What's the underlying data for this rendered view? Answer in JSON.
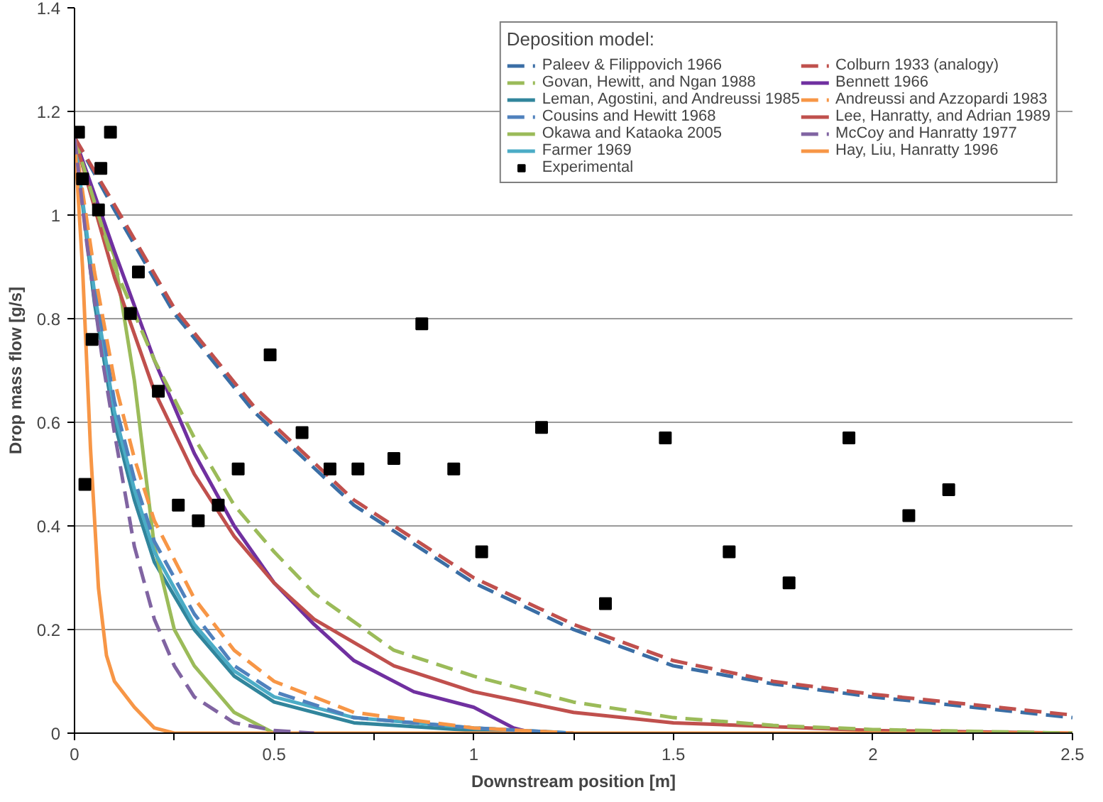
{
  "chart_data": {
    "type": "line",
    "xlabel": "Downstream position [m]",
    "ylabel": "Drop mass flow [g/s]",
    "legend_title": "Deposition model:",
    "legend": "top right",
    "grid": "y",
    "xlim": [
      0,
      2.5
    ],
    "ylim": [
      0,
      1.4
    ],
    "xticks": [
      0,
      {
        "value": 0.25,
        "label": null
      },
      0.5,
      {
        "value": 0.75,
        "label": null
      },
      1,
      {
        "value": 1.25,
        "label": null
      },
      1.5,
      {
        "value": 1.75,
        "label": null
      },
      2,
      {
        "value": 2.25,
        "label": null
      },
      2.5
    ],
    "yticks": [
      0,
      0.2,
      0.4,
      0.6,
      0.8,
      1,
      1.2,
      1.4
    ],
    "series": [
      {
        "name": "Paleev & Filippovich 1966",
        "color": "#3a6ea5",
        "line_style": "dashed",
        "x": [
          0,
          0.1,
          0.25,
          0.45,
          0.7,
          1.0,
          1.25,
          1.5,
          1.75,
          2.0,
          2.25,
          2.5
        ],
        "values": [
          1.15,
          1.01,
          0.81,
          0.62,
          0.44,
          0.29,
          0.2,
          0.13,
          0.095,
          0.07,
          0.05,
          0.03
        ]
      },
      {
        "name": "Govan, Hewitt, and Ngan 1988",
        "color": "#9bbb59",
        "line_style": "dashed",
        "x": [
          0,
          0.1,
          0.2,
          0.3,
          0.4,
          0.5,
          0.6,
          0.8,
          1.0,
          1.25,
          1.5,
          1.75,
          2.0,
          2.5
        ],
        "values": [
          1.15,
          0.9,
          0.72,
          0.57,
          0.44,
          0.35,
          0.27,
          0.16,
          0.11,
          0.06,
          0.03,
          0.015,
          0.007,
          0
        ]
      },
      {
        "name": "Leman, Agostini, and Andreussi 1985",
        "color": "#31859c",
        "line_style": "solid",
        "x": [
          0,
          0.05,
          0.1,
          0.15,
          0.2,
          0.3,
          0.4,
          0.5,
          0.7,
          1.0,
          1.25
        ],
        "values": [
          1.15,
          0.83,
          0.6,
          0.45,
          0.33,
          0.2,
          0.11,
          0.06,
          0.02,
          0.005,
          0
        ]
      },
      {
        "name": "Cousins and Hewitt 1968",
        "color": "#4f81bd",
        "line_style": "dashed",
        "x": [
          0,
          0.05,
          0.1,
          0.15,
          0.2,
          0.3,
          0.4,
          0.5,
          0.7,
          1.0,
          1.25
        ],
        "values": [
          1.15,
          0.87,
          0.64,
          0.49,
          0.37,
          0.23,
          0.13,
          0.08,
          0.03,
          0.01,
          0
        ]
      },
      {
        "name": "Okawa and Kataoka 2005",
        "color": "#9bbb59",
        "line_style": "solid",
        "x": [
          0,
          0.05,
          0.1,
          0.15,
          0.2,
          0.25,
          0.3,
          0.4,
          0.5
        ],
        "values": [
          1.15,
          1.02,
          0.92,
          0.68,
          0.36,
          0.2,
          0.13,
          0.04,
          0
        ]
      },
      {
        "name": "Farmer 1969",
        "color": "#4bacc6",
        "line_style": "solid",
        "x": [
          0,
          0.05,
          0.1,
          0.15,
          0.2,
          0.3,
          0.4,
          0.5,
          0.7,
          1.0,
          1.25
        ],
        "values": [
          1.15,
          0.85,
          0.62,
          0.47,
          0.35,
          0.21,
          0.12,
          0.07,
          0.03,
          0.01,
          0
        ]
      },
      {
        "name": "Experimental",
        "type": "scatter",
        "marker": "square",
        "color": "#000000",
        "x": [
          0.01,
          0.09,
          0.02,
          0.066,
          0.06,
          0.16,
          0.14,
          0.044,
          0.026,
          0.21,
          0.49,
          0.87,
          0.57,
          0.41,
          0.36,
          0.31,
          0.26,
          0.64,
          0.71,
          0.8,
          0.95,
          1.02,
          1.17,
          1.48,
          1.33,
          1.64,
          1.79,
          1.94,
          2.09,
          2.19
        ],
        "values": [
          1.16,
          1.16,
          1.07,
          1.09,
          1.01,
          0.89,
          0.81,
          0.76,
          0.48,
          0.66,
          0.73,
          0.79,
          0.58,
          0.51,
          0.44,
          0.41,
          0.44,
          0.51,
          0.51,
          0.53,
          0.51,
          0.35,
          0.59,
          0.57,
          0.25,
          0.35,
          0.29,
          0.57,
          0.42,
          0.47
        ]
      },
      {
        "name": "Colburn 1933 (analogy)",
        "color": "#c0504d",
        "line_style": "dashed",
        "x": [
          0,
          0.1,
          0.25,
          0.45,
          0.7,
          1.0,
          1.25,
          1.5,
          1.75,
          2.0,
          2.25,
          2.5
        ],
        "values": [
          1.15,
          1.02,
          0.82,
          0.63,
          0.45,
          0.3,
          0.21,
          0.14,
          0.1,
          0.075,
          0.055,
          0.035
        ]
      },
      {
        "name": "Bennett 1966",
        "color": "#7030a0",
        "line_style": "solid",
        "x": [
          0,
          0.1,
          0.2,
          0.3,
          0.4,
          0.5,
          0.6,
          0.7,
          0.85,
          1.0,
          1.1,
          1.15
        ],
        "values": [
          1.15,
          0.93,
          0.72,
          0.54,
          0.4,
          0.29,
          0.21,
          0.14,
          0.08,
          0.05,
          0.01,
          0
        ]
      },
      {
        "name": "Andreussi and Azzopardi 1983",
        "color": "#f79646",
        "line_style": "dashed",
        "x": [
          0,
          0.05,
          0.1,
          0.15,
          0.2,
          0.3,
          0.4,
          0.5,
          0.7,
          1.0,
          1.25
        ],
        "values": [
          1.15,
          0.89,
          0.68,
          0.53,
          0.41,
          0.26,
          0.16,
          0.1,
          0.04,
          0.01,
          0
        ]
      },
      {
        "name": "Lee, Hanratty, and Adrian 1989",
        "color": "#c0504d",
        "line_style": "solid",
        "x": [
          0,
          0.1,
          0.2,
          0.3,
          0.4,
          0.5,
          0.6,
          0.8,
          1.0,
          1.25,
          1.5,
          2.0,
          2.5
        ],
        "values": [
          1.15,
          0.88,
          0.66,
          0.5,
          0.38,
          0.29,
          0.22,
          0.13,
          0.08,
          0.04,
          0.02,
          0.005,
          0
        ]
      },
      {
        "name": "McCoy and Hanratty 1977",
        "color": "#8064a2",
        "line_style": "dashed",
        "x": [
          0,
          0.03,
          0.07,
          0.1,
          0.15,
          0.2,
          0.25,
          0.3,
          0.4,
          0.5,
          0.6
        ],
        "values": [
          1.15,
          0.95,
          0.72,
          0.58,
          0.36,
          0.22,
          0.13,
          0.07,
          0.02,
          0.005,
          0
        ]
      },
      {
        "name": "Hay, Liu, Hanratty 1996",
        "color": "#f79646",
        "line_style": "solid",
        "x": [
          0,
          0.02,
          0.04,
          0.06,
          0.08,
          0.1,
          0.15,
          0.2,
          0.25,
          2.5
        ],
        "values": [
          1.15,
          0.9,
          0.55,
          0.28,
          0.15,
          0.1,
          0.05,
          0.01,
          0,
          0
        ]
      }
    ]
  }
}
